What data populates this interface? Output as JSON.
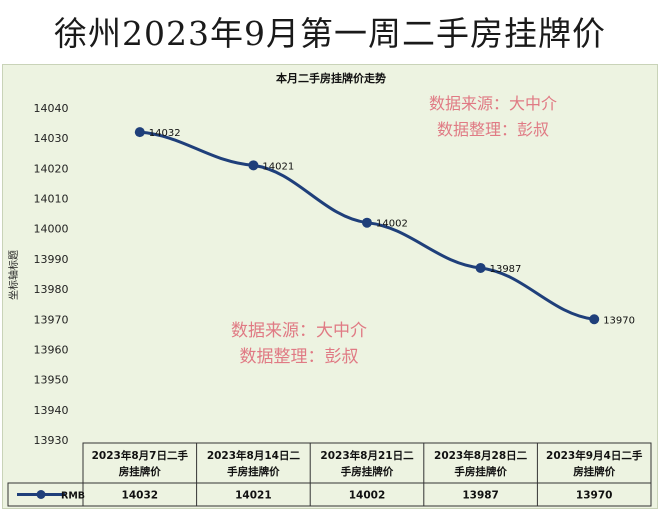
{
  "banner": {
    "title": "徐州2023年9月第一周二手房挂牌价"
  },
  "chart_data": {
    "type": "line",
    "title": "本月二手房挂牌价走势",
    "ylabel": "坐标轴标题",
    "ylim": [
      13930,
      14040
    ],
    "yticks": [
      13930,
      13940,
      13950,
      13960,
      13970,
      13980,
      13990,
      14000,
      14010,
      14020,
      14030,
      14040
    ],
    "categories": [
      "2023年8月7日二手房挂牌价",
      "2023年8月14日二手房挂牌价",
      "2023年8月21日二手房挂牌价",
      "2023年8月28日二手房挂牌价",
      "2023年9月4日二手房挂牌价"
    ],
    "category_lines": [
      [
        "2023年8月7日二手",
        "房挂牌价"
      ],
      [
        "2023年8月14日二",
        "手房挂牌价"
      ],
      [
        "2023年8月21日二",
        "手房挂牌价"
      ],
      [
        "2023年8月28日二",
        "手房挂牌价"
      ],
      [
        "2023年9月4日二手",
        "房挂牌价"
      ]
    ],
    "series": [
      {
        "name": "RMB",
        "values": [
          14032,
          14021,
          14002,
          13987,
          13970
        ],
        "color": "#1f3f7a"
      }
    ],
    "grid": false,
    "legend": "data-table",
    "watermarks": [
      {
        "line1": "数据来源：大中介",
        "line2": "数据整理：彭叔"
      },
      {
        "line1": "数据来源：大中介",
        "line2": "数据整理：彭叔"
      }
    ],
    "watermark_color": "#e07a84"
  }
}
